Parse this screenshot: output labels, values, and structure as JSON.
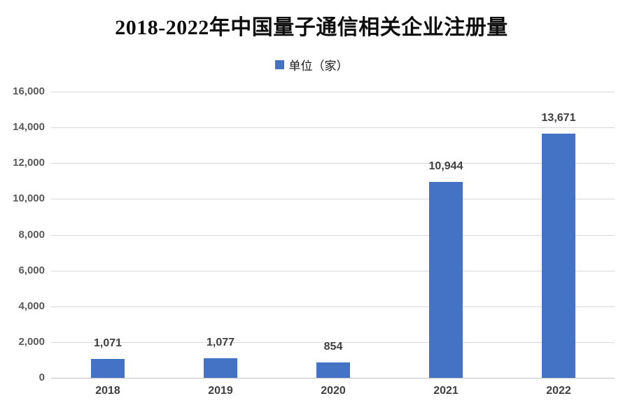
{
  "title": "2018-2022年中国量子通信相关企业注册量",
  "legend": {
    "label": "单位（家）",
    "swatch_color": "#4472C4"
  },
  "chart_data": {
    "type": "bar",
    "title": "2018-2022年中国量子通信相关企业注册量",
    "series_name": "单位（家）",
    "categories": [
      "2018",
      "2019",
      "2020",
      "2021",
      "2022"
    ],
    "values": [
      1071,
      1077,
      854,
      10944,
      13671
    ],
    "value_labels": [
      "1,071",
      "1,077",
      "854",
      "10,944",
      "13,671"
    ],
    "xlabel": "",
    "ylabel": "",
    "ylim": [
      0,
      16000
    ],
    "y_tick_step": 2000,
    "y_tick_labels": [
      "0",
      "2,000",
      "4,000",
      "6,000",
      "8,000",
      "10,000",
      "12,000",
      "14,000",
      "16,000"
    ],
    "grid": "horizontal",
    "legend_position": "top-center",
    "colors": {
      "bar": "#4472C4",
      "gridline": "#d9d9d9",
      "axis_line": "#c0c0c0",
      "tick_label": "#595959",
      "data_label": "#404040",
      "background": "#ffffff"
    }
  }
}
